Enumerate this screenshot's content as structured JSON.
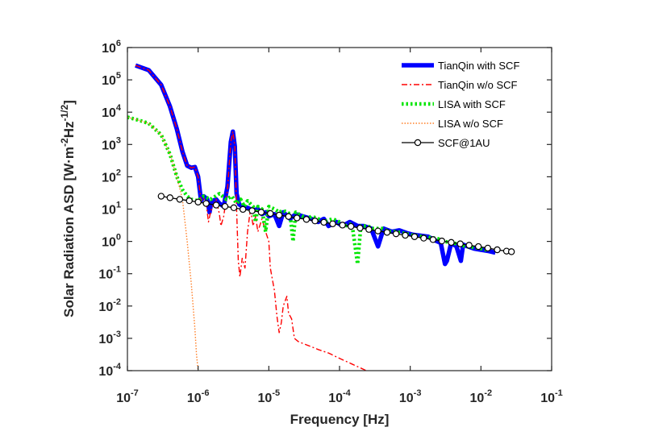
{
  "chart_data": {
    "type": "line",
    "title": "",
    "xlabel": "Frequency [Hz]",
    "ylabel": "Solar Radiation ASD [W·m^-2Hz^-1/2]",
    "ylabel_parts": {
      "prefix": "Solar Radiation ASD [W",
      "dot": "·",
      "m": "m",
      "exp1": "-2",
      "hz": "Hz",
      "exp2": "-1/2",
      "suffix": "]"
    },
    "x_scale": "log",
    "y_scale": "log",
    "xlim": [
      1e-07,
      0.1
    ],
    "ylim": [
      0.0001,
      1000000.0
    ],
    "x_ticks": [
      {
        "value": 1e-07,
        "base": "10",
        "exp": "-7"
      },
      {
        "value": 1e-06,
        "base": "10",
        "exp": "-6"
      },
      {
        "value": 1e-05,
        "base": "10",
        "exp": "-5"
      },
      {
        "value": 0.0001,
        "base": "10",
        "exp": "-4"
      },
      {
        "value": 0.001,
        "base": "10",
        "exp": "-3"
      },
      {
        "value": 0.01,
        "base": "10",
        "exp": "-2"
      },
      {
        "value": 0.1,
        "base": "10",
        "exp": "-1"
      }
    ],
    "y_ticks": [
      {
        "value": 1000000.0,
        "base": "10",
        "exp": "6"
      },
      {
        "value": 100000.0,
        "base": "10",
        "exp": "5"
      },
      {
        "value": 10000.0,
        "base": "10",
        "exp": "4"
      },
      {
        "value": 1000.0,
        "base": "10",
        "exp": "3"
      },
      {
        "value": 100.0,
        "base": "10",
        "exp": "2"
      },
      {
        "value": 10.0,
        "base": "10",
        "exp": "1"
      },
      {
        "value": 1.0,
        "base": "10",
        "exp": "0"
      },
      {
        "value": 0.1,
        "base": "10",
        "exp": "-1"
      },
      {
        "value": 0.01,
        "base": "10",
        "exp": "-2"
      },
      {
        "value": 0.001,
        "base": "10",
        "exp": "-3"
      },
      {
        "value": 0.0001,
        "base": "10",
        "exp": "-4"
      }
    ],
    "grid": false,
    "legend_position": "top-right",
    "series": [
      {
        "name": "TianQin with SCF",
        "color": "#0000ff",
        "style": "solid-thick",
        "points": [
          [
            1.3e-07,
            280000
          ],
          [
            2e-07,
            200000
          ],
          [
            3e-07,
            70000
          ],
          [
            4e-07,
            15000
          ],
          [
            5e-07,
            3000
          ],
          [
            6e-07,
            600
          ],
          [
            7e-07,
            220
          ],
          [
            8e-07,
            190
          ],
          [
            9e-07,
            200
          ],
          [
            1e-06,
            100
          ],
          [
            1.1e-06,
            18
          ],
          [
            1.2e-06,
            25
          ],
          [
            1.35e-06,
            20
          ],
          [
            1.45e-06,
            8
          ],
          [
            1.5e-06,
            12
          ],
          [
            1.6e-06,
            18
          ],
          [
            1.8e-06,
            20
          ],
          [
            2e-06,
            15
          ],
          [
            2.3e-06,
            12
          ],
          [
            2.6e-06,
            50
          ],
          [
            2.9e-06,
            1200
          ],
          [
            3.1e-06,
            2500
          ],
          [
            3.3e-06,
            900
          ],
          [
            3.5e-06,
            30
          ],
          [
            3.8e-06,
            14
          ],
          [
            4.2e-06,
            12
          ],
          [
            5e-06,
            11
          ],
          [
            6e-06,
            9
          ],
          [
            7e-06,
            10
          ],
          [
            8e-06,
            7
          ],
          [
            9e-06,
            8
          ],
          [
            1e-05,
            6
          ],
          [
            1.2e-05,
            7
          ],
          [
            1.4e-05,
            3
          ],
          [
            1.6e-05,
            8
          ],
          [
            2e-05,
            5
          ],
          [
            2.4e-05,
            7
          ],
          [
            3e-05,
            6
          ],
          [
            4e-05,
            5
          ],
          [
            5e-05,
            4
          ],
          [
            6e-05,
            5
          ],
          [
            7e-05,
            3
          ],
          [
            9e-05,
            4
          ],
          [
            0.00011,
            3
          ],
          [
            0.00014,
            4
          ],
          [
            0.00018,
            3
          ],
          [
            0.00022,
            3
          ],
          [
            0.00028,
            2.5
          ],
          [
            0.00035,
            0.7
          ],
          [
            0.00042,
            2.5
          ],
          [
            0.00055,
            2
          ],
          [
            0.0007,
            2.2
          ],
          [
            0.0009,
            1.8
          ],
          [
            0.0011,
            1.6
          ],
          [
            0.0014,
            1.5
          ],
          [
            0.0018,
            1.4
          ],
          [
            0.0022,
            1.1
          ],
          [
            0.0027,
            0.9
          ],
          [
            0.0031,
            0.2
          ],
          [
            0.0033,
            0.25
          ],
          [
            0.0038,
            0.9
          ],
          [
            0.0045,
            0.7
          ],
          [
            0.0052,
            0.25
          ],
          [
            0.0056,
            0.8
          ],
          [
            0.0065,
            0.7
          ],
          [
            0.008,
            0.6
          ],
          [
            0.01,
            0.55
          ],
          [
            0.013,
            0.5
          ],
          [
            0.016,
            0.45
          ]
        ]
      },
      {
        "name": "TianQin w/o SCF",
        "color": "#ff0000",
        "style": "dashdot",
        "points": [
          [
            1.3e-07,
            280000
          ],
          [
            2e-07,
            200000
          ],
          [
            3e-07,
            70000
          ],
          [
            4e-07,
            15000
          ],
          [
            5e-07,
            3000
          ],
          [
            6e-07,
            600
          ],
          [
            7e-07,
            220
          ],
          [
            8e-07,
            190
          ],
          [
            9e-07,
            200
          ],
          [
            1e-06,
            100
          ],
          [
            1.1e-06,
            18
          ],
          [
            1.2e-06,
            22
          ],
          [
            1.3e-06,
            15
          ],
          [
            1.4e-06,
            4
          ],
          [
            1.5e-06,
            8
          ],
          [
            1.6e-06,
            12
          ],
          [
            1.8e-06,
            20
          ],
          [
            2e-06,
            7
          ],
          [
            2.1e-06,
            3
          ],
          [
            2.3e-06,
            6
          ],
          [
            2.6e-06,
            40
          ],
          [
            2.9e-06,
            1200
          ],
          [
            3.1e-06,
            2500
          ],
          [
            3.3e-06,
            900
          ],
          [
            3.5e-06,
            10
          ],
          [
            3.7e-06,
            0.25
          ],
          [
            3.9e-06,
            0.08
          ],
          [
            4.2e-06,
            0.3
          ],
          [
            4.6e-06,
            0.15
          ],
          [
            5e-06,
            2
          ],
          [
            5.5e-06,
            10
          ],
          [
            6e-06,
            3
          ],
          [
            6.5e-06,
            6
          ],
          [
            7e-06,
            2
          ],
          [
            8e-06,
            5
          ],
          [
            9e-06,
            2
          ],
          [
            1e-05,
            1
          ],
          [
            1.05e-05,
            0.15
          ],
          [
            1.2e-05,
            0.03
          ],
          [
            1.3e-05,
            0.005
          ],
          [
            1.4e-05,
            0.0015
          ],
          [
            1.5e-05,
            0.003
          ],
          [
            1.6e-05,
            0.01
          ],
          [
            1.8e-05,
            0.02
          ],
          [
            1.9e-05,
            0.006
          ],
          [
            2.1e-05,
            0.004
          ],
          [
            2.3e-05,
            0.001
          ],
          [
            2.6e-05,
            0.0008
          ],
          [
            3e-05,
            0.0007
          ],
          [
            4e-05,
            0.00055
          ],
          [
            5e-05,
            0.00045
          ],
          [
            7e-05,
            0.00035
          ],
          [
            0.0001,
            0.00024
          ],
          [
            0.00015,
            0.00016
          ],
          [
            0.0002,
            0.00012
          ],
          [
            0.00024,
            0.0001
          ]
        ]
      },
      {
        "name": "LISA with SCF",
        "color": "#00e600",
        "style": "dotted-thick",
        "points": [
          [
            1e-07,
            7000
          ],
          [
            1.5e-07,
            5500
          ],
          [
            2e-07,
            4500
          ],
          [
            3e-07,
            2000
          ],
          [
            4e-07,
            500
          ],
          [
            5e-07,
            100
          ],
          [
            6e-07,
            40
          ],
          [
            7e-07,
            25
          ],
          [
            8e-07,
            20
          ],
          [
            1e-06,
            18
          ],
          [
            1.2e-06,
            25
          ],
          [
            1.5e-06,
            20
          ],
          [
            2e-06,
            30
          ],
          [
            2.5e-06,
            20
          ],
          [
            3e-06,
            25
          ],
          [
            3.5e-06,
            15
          ],
          [
            4e-06,
            20
          ],
          [
            4.5e-06,
            12
          ],
          [
            5e-06,
            18
          ],
          [
            6e-06,
            12
          ],
          [
            6.5e-06,
            4
          ],
          [
            7e-06,
            12
          ],
          [
            8e-06,
            10
          ],
          [
            9e-06,
            2
          ],
          [
            1e-05,
            12
          ],
          [
            1.2e-05,
            10
          ],
          [
            1.4e-05,
            8
          ],
          [
            1.6e-05,
            9
          ],
          [
            1.8e-05,
            8
          ],
          [
            2e-05,
            7
          ],
          [
            2.2e-05,
            1
          ],
          [
            2.4e-05,
            8
          ],
          [
            3e-05,
            6
          ],
          [
            3.5e-05,
            5
          ],
          [
            4e-05,
            6
          ],
          [
            5e-05,
            5
          ],
          [
            6e-05,
            4
          ],
          [
            8e-05,
            5
          ],
          [
            0.0001,
            4
          ],
          [
            0.00012,
            3
          ],
          [
            0.00015,
            3.5
          ],
          [
            0.00018,
            0.2
          ],
          [
            0.0002,
            3
          ],
          [
            0.00025,
            3
          ],
          [
            0.0003,
            2.5
          ],
          [
            0.0004,
            2.5
          ],
          [
            0.0005,
            2
          ],
          [
            0.0006,
            2
          ],
          [
            0.0008,
            1.8
          ],
          [
            0.001,
            1.6
          ],
          [
            0.0015,
            1.4
          ],
          [
            0.002,
            1.3
          ],
          [
            0.0025,
            1.2
          ],
          [
            0.003,
            1
          ],
          [
            0.004,
            0.9
          ],
          [
            0.005,
            0.8
          ],
          [
            0.006,
            0.7
          ],
          [
            0.008,
            0.65
          ],
          [
            0.01,
            0.6
          ],
          [
            0.012,
            0.55
          ]
        ]
      },
      {
        "name": "LISA w/o SCF",
        "color": "#ff7f27",
        "style": "dotted",
        "points": [
          [
            1e-07,
            7000
          ],
          [
            1.5e-07,
            5500
          ],
          [
            2e-07,
            4500
          ],
          [
            3e-07,
            2000
          ],
          [
            4e-07,
            500
          ],
          [
            5e-07,
            100
          ],
          [
            6e-07,
            20
          ],
          [
            7e-07,
            1
          ],
          [
            8e-07,
            0.05
          ],
          [
            9e-07,
            0.002
          ],
          [
            9.5e-07,
            0.0003
          ],
          [
            1e-06,
            0.0001
          ]
        ]
      },
      {
        "name": "SCF@1AU",
        "color": "#000000",
        "style": "solid-circles",
        "points": [
          [
            3e-07,
            25
          ],
          [
            4e-07,
            22.5
          ],
          [
            5.5e-07,
            20
          ],
          [
            7.5e-07,
            18.2
          ],
          [
            1e-06,
            16.5
          ],
          [
            1.3e-06,
            14.9
          ],
          [
            1.8e-06,
            13.3
          ],
          [
            2.4e-06,
            12.1
          ],
          [
            3.2e-06,
            11
          ],
          [
            4.3e-06,
            9.8
          ],
          [
            5.8e-06,
            8.9
          ],
          [
            7.8e-06,
            8
          ],
          [
            1.05e-05,
            7.3
          ],
          [
            1.4e-05,
            6.5
          ],
          [
            1.9e-05,
            5.9
          ],
          [
            2.5e-05,
            5.3
          ],
          [
            3.4e-05,
            4.8
          ],
          [
            4.5e-05,
            4.3
          ],
          [
            6e-05,
            3.9
          ],
          [
            8e-05,
            3.5
          ],
          [
            0.00011,
            3.2
          ],
          [
            0.000145,
            2.9
          ],
          [
            0.000195,
            2.6
          ],
          [
            0.00026,
            2.35
          ],
          [
            0.00035,
            2.1
          ],
          [
            0.00047,
            1.9
          ],
          [
            0.00063,
            1.72
          ],
          [
            0.00085,
            1.55
          ],
          [
            0.00115,
            1.4
          ],
          [
            0.00155,
            1.26
          ],
          [
            0.0021,
            1.14
          ],
          [
            0.0028,
            1.03
          ],
          [
            0.0038,
            0.93
          ],
          [
            0.0051,
            0.84
          ],
          [
            0.0068,
            0.76
          ],
          [
            0.0092,
            0.69
          ],
          [
            0.0125,
            0.62
          ],
          [
            0.017,
            0.55
          ],
          [
            0.023,
            0.5
          ],
          [
            0.027,
            0.48
          ]
        ]
      }
    ]
  }
}
